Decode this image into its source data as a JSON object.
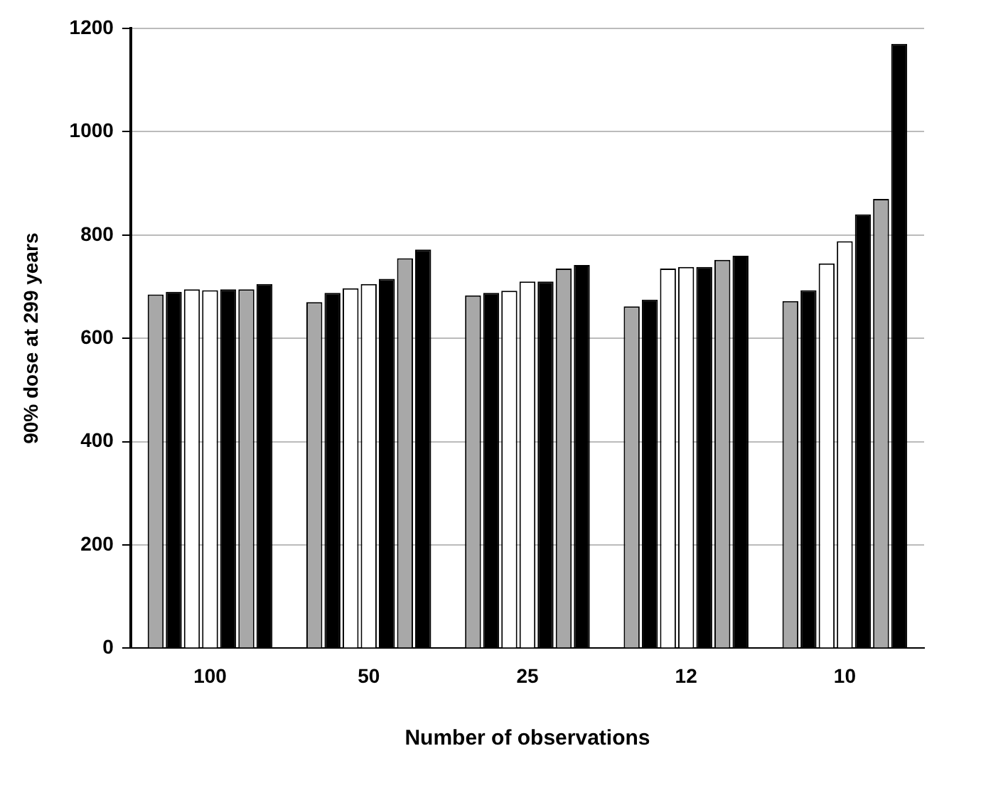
{
  "chart_data": {
    "type": "bar",
    "xlabel": "Number of observations",
    "ylabel": "90% dose at 299 years",
    "categories": [
      "100",
      "50",
      "25",
      "12",
      "10"
    ],
    "series": [
      {
        "color": "#a8a8a8",
        "values": [
          685,
          670,
          683,
          662,
          672
        ]
      },
      {
        "color": "#000000",
        "values": [
          690,
          688,
          688,
          675,
          693
        ]
      },
      {
        "color": "#ffffff",
        "values": [
          695,
          697,
          692,
          735,
          745
        ]
      },
      {
        "color": "#ffffff",
        "values": [
          693,
          705,
          710,
          738,
          788
        ]
      },
      {
        "color": "#000000",
        "values": [
          695,
          715,
          710,
          738,
          840
        ]
      },
      {
        "color": "#a8a8a8",
        "values": [
          695,
          755,
          735,
          752,
          870
        ]
      },
      {
        "color": "#000000",
        "values": [
          705,
          772,
          742,
          760,
          1170
        ]
      }
    ],
    "ylim": [
      0,
      1200
    ],
    "yticks": [
      0,
      200,
      400,
      600,
      800,
      1000,
      1200
    ],
    "grid": "y",
    "legend": false
  }
}
